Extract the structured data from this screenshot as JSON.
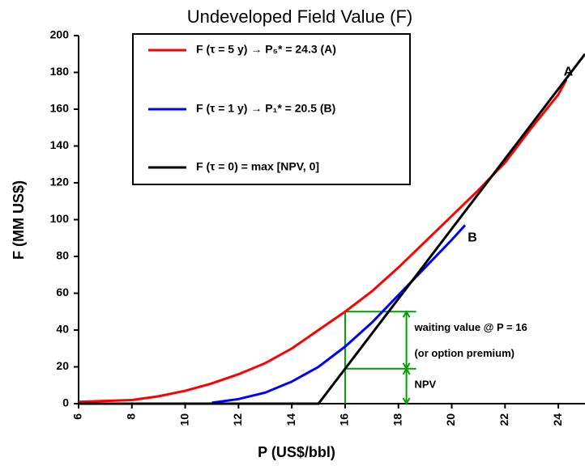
{
  "chart_data": {
    "type": "line",
    "title": "Undeveloped Field Value (F)",
    "xlabel": "P (US$/bbl)",
    "ylabel": "F (MM US$)",
    "xlim": [
      6,
      25
    ],
    "xticks": [
      6,
      8,
      10,
      12,
      14,
      16,
      18,
      20,
      22,
      24
    ],
    "ylim": [
      0,
      200
    ],
    "yticks": [
      0,
      20,
      40,
      60,
      80,
      100,
      120,
      140,
      160,
      180,
      200
    ],
    "series": [
      {
        "name": "F (τ = 5 y) → P₅* = 24.3 (A)",
        "color": "#ff0000",
        "x": [
          6,
          7,
          8,
          9,
          10,
          11,
          12,
          13,
          14,
          15,
          16,
          17,
          18,
          19,
          20,
          21,
          22,
          23,
          24,
          24.3
        ],
        "values": [
          1,
          1.5,
          2,
          4,
          7,
          11,
          16,
          22,
          30,
          40,
          50,
          61,
          74,
          88,
          102,
          116,
          131,
          150,
          168,
          176
        ]
      },
      {
        "name": "F (τ = 1 y) → P₁* = 20.5 (B)",
        "color": "#0000ff",
        "x": [
          11,
          12,
          13,
          14,
          15,
          16,
          17,
          18,
          19,
          20,
          20.5
        ],
        "values": [
          0.5,
          2.5,
          6,
          12,
          20,
          31,
          44,
          59,
          74,
          89,
          97
        ]
      },
      {
        "name": "F (τ = 0) = max [NPV, 0]",
        "color": "#000000",
        "x": [
          6,
          15,
          25
        ],
        "values": [
          0,
          0,
          190
        ]
      }
    ],
    "annotations": [
      {
        "text": "A",
        "x": 24.2,
        "y": 180
      },
      {
        "text": "B",
        "x": 20.6,
        "y": 90
      },
      {
        "text": "waiting value @ P = 16",
        "x": 18.6,
        "y": 41
      },
      {
        "text": "(or option premium)",
        "x": 18.6,
        "y": 27
      },
      {
        "text": "NPV",
        "x": 18.6,
        "y": 10
      }
    ],
    "premium": {
      "color": "#00a000",
      "x": 16,
      "bracket_x": 18.3,
      "npv": 19,
      "value": 50
    }
  }
}
